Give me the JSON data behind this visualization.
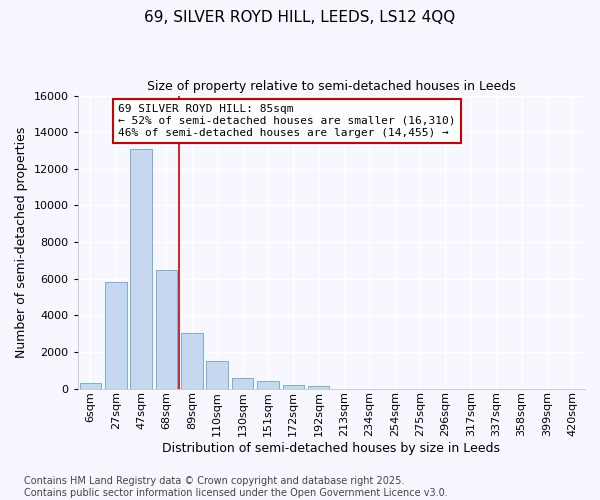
{
  "title_line1": "69, SILVER ROYD HILL, LEEDS, LS12 4QQ",
  "title_line2": "Size of property relative to semi-detached houses in Leeds",
  "xlabel": "Distribution of semi-detached houses by size in Leeds",
  "ylabel": "Number of semi-detached properties",
  "categories": [
    "6sqm",
    "27sqm",
    "47sqm",
    "68sqm",
    "89sqm",
    "110sqm",
    "130sqm",
    "151sqm",
    "172sqm",
    "192sqm",
    "213sqm",
    "234sqm",
    "254sqm",
    "275sqm",
    "296sqm",
    "317sqm",
    "337sqm",
    "358sqm",
    "399sqm",
    "420sqm"
  ],
  "values": [
    300,
    5800,
    13100,
    6500,
    3050,
    1500,
    600,
    400,
    200,
    150,
    0,
    0,
    0,
    0,
    0,
    0,
    0,
    0,
    0,
    0
  ],
  "bar_color": "#c5d8f0",
  "bar_edge_color": "#7bafd4",
  "vline_color": "#cc0000",
  "vline_pos": 3.5,
  "annotation_title": "69 SILVER ROYD HILL: 85sqm",
  "annotation_line2": "← 52% of semi-detached houses are smaller (16,310)",
  "annotation_line3": "46% of semi-detached houses are larger (14,455) →",
  "annotation_box_edgecolor": "#cc0000",
  "ylim": [
    0,
    16000
  ],
  "yticks": [
    0,
    2000,
    4000,
    6000,
    8000,
    10000,
    12000,
    14000,
    16000
  ],
  "footer_line1": "Contains HM Land Registry data © Crown copyright and database right 2025.",
  "footer_line2": "Contains public sector information licensed under the Open Government Licence v3.0.",
  "bg_color": "#f7f7ff",
  "grid_color": "#d0d8e8",
  "title_fontsize": 11,
  "subtitle_fontsize": 9,
  "axis_label_fontsize": 9,
  "tick_fontsize": 8,
  "footer_fontsize": 7
}
